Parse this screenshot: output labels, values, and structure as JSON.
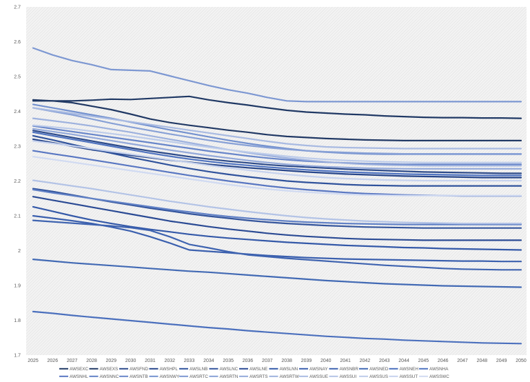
{
  "chart_data": {
    "type": "line",
    "title": "",
    "xlabel": "",
    "ylabel": "",
    "x": [
      "2025",
      "2026",
      "2027",
      "2028",
      "2029",
      "2030",
      "2031",
      "2032",
      "2033",
      "2034",
      "2035",
      "2036",
      "2037",
      "2038",
      "2039",
      "2040",
      "2041",
      "2042",
      "2043",
      "2044",
      "2045",
      "2046",
      "2047",
      "2048",
      "2049",
      "2050"
    ],
    "ylim": [
      1.7,
      2.7
    ],
    "yticks": [
      "1.7",
      "1.8",
      "1.9",
      "2",
      "2.1",
      "2.2",
      "2.3",
      "2.4",
      "2.5",
      "2.6",
      "2.7"
    ],
    "grid": false,
    "legend_position": "bottom",
    "background": "hatched light gray",
    "series": [
      {
        "name": "AWSEXC",
        "color": "#1f3864",
        "values": [
          2.43,
          2.43,
          2.43,
          2.432,
          2.435,
          2.434,
          2.437,
          2.44,
          2.443,
          2.433,
          2.425,
          2.418,
          2.41,
          2.403,
          2.398,
          2.395,
          2.392,
          2.39,
          2.387,
          2.385,
          2.383,
          2.382,
          2.382,
          2.381,
          2.381,
          2.38
        ]
      },
      {
        "name": "AWSEXS",
        "color": "#203864",
        "values": [
          2.433,
          2.43,
          2.425,
          2.415,
          2.405,
          2.392,
          2.378,
          2.368,
          2.36,
          2.353,
          2.346,
          2.34,
          2.333,
          2.328,
          2.325,
          2.322,
          2.32,
          2.318,
          2.317,
          2.316,
          2.316,
          2.316,
          2.316,
          2.316,
          2.316,
          2.316
        ]
      },
      {
        "name": "AWSFND",
        "color": "#2c4a8a",
        "values": [
          2.345,
          2.335,
          2.325,
          2.315,
          2.305,
          2.295,
          2.286,
          2.278,
          2.27,
          2.263,
          2.257,
          2.252,
          2.247,
          2.243,
          2.24,
          2.237,
          2.234,
          2.232,
          2.23,
          2.228,
          2.226,
          2.225,
          2.224,
          2.223,
          2.222,
          2.222
        ]
      },
      {
        "name": "AWSHPL",
        "color": "#26458a",
        "values": [
          2.32,
          2.31,
          2.3,
          2.29,
          2.282,
          2.274,
          2.267,
          2.26,
          2.254,
          2.248,
          2.243,
          2.238,
          2.234,
          2.23,
          2.226,
          2.223,
          2.22,
          2.218,
          2.216,
          2.214,
          2.213,
          2.212,
          2.211,
          2.21,
          2.21,
          2.21
        ]
      },
      {
        "name": "AWSLNB",
        "color": "#2f529c",
        "values": [
          2.33,
          2.318,
          2.305,
          2.292,
          2.28,
          2.268,
          2.257,
          2.246,
          2.236,
          2.227,
          2.219,
          2.212,
          2.206,
          2.2,
          2.196,
          2.193,
          2.19,
          2.188,
          2.187,
          2.186,
          2.186,
          2.186,
          2.186,
          2.186,
          2.186,
          2.186
        ]
      },
      {
        "name": "AWSLNC",
        "color": "#33549c",
        "values": [
          2.178,
          2.17,
          2.16,
          2.15,
          2.14,
          2.131,
          2.122,
          2.114,
          2.106,
          2.099,
          2.093,
          2.087,
          2.082,
          2.078,
          2.075,
          2.072,
          2.07,
          2.068,
          2.067,
          2.066,
          2.065,
          2.065,
          2.065,
          2.065,
          2.065,
          2.065
        ]
      },
      {
        "name": "AWSLNE",
        "color": "#2a4a94",
        "values": [
          2.155,
          2.145,
          2.135,
          2.125,
          2.115,
          2.105,
          2.095,
          2.085,
          2.077,
          2.069,
          2.062,
          2.056,
          2.05,
          2.045,
          2.041,
          2.038,
          2.035,
          2.033,
          2.032,
          2.031,
          2.03,
          2.03,
          2.03,
          2.03,
          2.03,
          2.03
        ]
      },
      {
        "name": "AWSLNN",
        "color": "#3358a8",
        "values": [
          2.126,
          2.113,
          2.1,
          2.088,
          2.078,
          2.069,
          2.061,
          2.054,
          2.047,
          2.041,
          2.036,
          2.032,
          2.028,
          2.024,
          2.021,
          2.018,
          2.015,
          2.013,
          2.011,
          2.009,
          2.008,
          2.006,
          2.005,
          2.004,
          2.003,
          2.002
        ]
      },
      {
        "name": "AWSNAY",
        "color": "#3a5fae",
        "values": [
          2.1,
          2.093,
          2.086,
          2.078,
          2.068,
          2.056,
          2.04,
          2.022,
          2.002,
          1.998,
          1.994,
          1.99,
          1.986,
          1.983,
          1.98,
          1.978,
          1.976,
          1.975,
          1.974,
          1.973,
          1.972,
          1.971,
          1.97,
          1.97,
          1.969,
          1.969
        ]
      },
      {
        "name": "AWSNBR",
        "color": "#3e63b0",
        "values": [
          2.087,
          2.083,
          2.079,
          2.075,
          2.071,
          2.066,
          2.058,
          2.04,
          2.018,
          2.008,
          1.997,
          1.988,
          1.983,
          1.978,
          1.974,
          1.97,
          1.966,
          1.962,
          1.958,
          1.955,
          1.952,
          1.949,
          1.947,
          1.946,
          1.945,
          1.945
        ]
      },
      {
        "name": "AWSNED",
        "color": "#4169b4",
        "values": [
          1.975,
          1.97,
          1.965,
          1.961,
          1.957,
          1.953,
          1.949,
          1.945,
          1.941,
          1.938,
          1.934,
          1.93,
          1.926,
          1.922,
          1.918,
          1.914,
          1.911,
          1.908,
          1.905,
          1.903,
          1.901,
          1.899,
          1.898,
          1.897,
          1.896,
          1.895
        ]
      },
      {
        "name": "AWSNEH",
        "color": "#4a6fbd",
        "values": [
          1.825,
          1.82,
          1.814,
          1.809,
          1.804,
          1.799,
          1.794,
          1.789,
          1.784,
          1.779,
          1.775,
          1.77,
          1.766,
          1.762,
          1.758,
          1.754,
          1.751,
          1.748,
          1.746,
          1.743,
          1.741,
          1.739,
          1.737,
          1.735,
          1.734,
          1.733
        ]
      },
      {
        "name": "AWSNHA",
        "color": "#4f73c0",
        "values": [
          2.34,
          2.33,
          2.32,
          2.31,
          2.3,
          2.29,
          2.28,
          2.271,
          2.263,
          2.256,
          2.25,
          2.245,
          2.24,
          2.236,
          2.232,
          2.229,
          2.226,
          2.224,
          2.222,
          2.22,
          2.219,
          2.218,
          2.217,
          2.216,
          2.216,
          2.216
        ]
      },
      {
        "name": "AWSNHL",
        "color": "#5876c2",
        "values": [
          2.287,
          2.278,
          2.27,
          2.261,
          2.252,
          2.243,
          2.234,
          2.225,
          2.216,
          2.208,
          2.2,
          2.193,
          2.186,
          2.18,
          2.175,
          2.171,
          2.167,
          2.164,
          2.162,
          2.16,
          2.159,
          2.158,
          2.157,
          2.157,
          2.157,
          2.157
        ]
      },
      {
        "name": "AWSNNC",
        "color": "#6181c6",
        "values": [
          2.175,
          2.166,
          2.158,
          2.15,
          2.142,
          2.134,
          2.126,
          2.118,
          2.111,
          2.104,
          2.098,
          2.093,
          2.089,
          2.085,
          2.082,
          2.08,
          2.078,
          2.077,
          2.076,
          2.075,
          2.075,
          2.075,
          2.075,
          2.075,
          2.075,
          2.075
        ]
      },
      {
        "name": "AWSNTB",
        "color": "#6886ca",
        "values": [
          2.358,
          2.35,
          2.342,
          2.334,
          2.326,
          2.318,
          2.31,
          2.302,
          2.294,
          2.286,
          2.279,
          2.272,
          2.266,
          2.261,
          2.257,
          2.254,
          2.252,
          2.25,
          2.249,
          2.248,
          2.248,
          2.248,
          2.248,
          2.248,
          2.248,
          2.248
        ]
      },
      {
        "name": "AWSNWY",
        "color": "#7391cf",
        "values": [
          2.42,
          2.41,
          2.4,
          2.39,
          2.38,
          2.369,
          2.358,
          2.347,
          2.337,
          2.327,
          2.317,
          2.308,
          2.3,
          2.293,
          2.287,
          2.283,
          2.28,
          2.278,
          2.277,
          2.277,
          2.277,
          2.277,
          2.277,
          2.277,
          2.277,
          2.277
        ]
      },
      {
        "name": "AWSRTC",
        "color": "#7c97d2",
        "values": [
          2.582,
          2.562,
          2.546,
          2.534,
          2.52,
          2.518,
          2.516,
          2.502,
          2.488,
          2.474,
          2.462,
          2.452,
          2.44,
          2.43,
          2.428,
          2.428,
          2.428,
          2.428,
          2.428,
          2.428,
          2.428,
          2.428,
          2.428,
          2.428,
          2.428,
          2.428
        ]
      },
      {
        "name": "AWSRTN",
        "color": "#87a0d6",
        "values": [
          2.41,
          2.4,
          2.39,
          2.378,
          2.366,
          2.355,
          2.345,
          2.335,
          2.326,
          2.317,
          2.309,
          2.302,
          2.296,
          2.291,
          2.287,
          2.284,
          2.282,
          2.28,
          2.279,
          2.278,
          2.278,
          2.278,
          2.278,
          2.278,
          2.278,
          2.278
        ]
      },
      {
        "name": "AWSRTS",
        "color": "#92a8da",
        "values": [
          2.35,
          2.342,
          2.334,
          2.325,
          2.316,
          2.307,
          2.298,
          2.289,
          2.281,
          2.273,
          2.266,
          2.259,
          2.253,
          2.248,
          2.244,
          2.241,
          2.239,
          2.237,
          2.236,
          2.235,
          2.235,
          2.235,
          2.235,
          2.235,
          2.235,
          2.235
        ]
      },
      {
        "name": "AWSRTW",
        "color": "#9db1de",
        "values": [
          2.38,
          2.373,
          2.366,
          2.358,
          2.349,
          2.34,
          2.33,
          2.32,
          2.31,
          2.3,
          2.29,
          2.281,
          2.273,
          2.266,
          2.26,
          2.255,
          2.251,
          2.248,
          2.246,
          2.245,
          2.244,
          2.244,
          2.244,
          2.244,
          2.244,
          2.244
        ]
      },
      {
        "name": "AWSSUE",
        "color": "#a8bae2",
        "values": [
          2.41,
          2.402,
          2.394,
          2.386,
          2.378,
          2.37,
          2.362,
          2.354,
          2.346,
          2.338,
          2.33,
          2.322,
          2.314,
          2.307,
          2.302,
          2.298,
          2.296,
          2.295,
          2.294,
          2.293,
          2.293,
          2.293,
          2.293,
          2.293,
          2.293,
          2.293
        ]
      },
      {
        "name": "AWSSUI",
        "color": "#b3c3e6",
        "values": [
          2.202,
          2.194,
          2.186,
          2.178,
          2.169,
          2.16,
          2.151,
          2.142,
          2.134,
          2.126,
          2.119,
          2.112,
          2.106,
          2.1,
          2.095,
          2.091,
          2.088,
          2.085,
          2.083,
          2.081,
          2.08,
          2.079,
          2.078,
          2.078,
          2.078,
          2.078
        ]
      },
      {
        "name": "AWSSUS",
        "color": "#bccbea",
        "values": [
          2.36,
          2.355,
          2.35,
          2.343,
          2.336,
          2.329,
          2.321,
          2.313,
          2.305,
          2.297,
          2.29,
          2.283,
          2.277,
          2.271,
          2.266,
          2.262,
          2.259,
          2.257,
          2.255,
          2.254,
          2.253,
          2.253,
          2.253,
          2.253,
          2.253,
          2.253
        ]
      },
      {
        "name": "AWSSUT",
        "color": "#c6d2ee",
        "values": [
          2.315,
          2.308,
          2.301,
          2.293,
          2.285,
          2.277,
          2.269,
          2.261,
          2.253,
          2.245,
          2.238,
          2.231,
          2.225,
          2.219,
          2.214,
          2.21,
          2.207,
          2.205,
          2.203,
          2.202,
          2.201,
          2.201,
          2.201,
          2.201,
          2.201,
          2.201
        ]
      },
      {
        "name": "AWSSWC",
        "color": "#d0daf2",
        "values": [
          2.27,
          2.262,
          2.254,
          2.246,
          2.238,
          2.23,
          2.222,
          2.214,
          2.206,
          2.198,
          2.19,
          2.183,
          2.177,
          2.172,
          2.168,
          2.165,
          2.162,
          2.16,
          2.159,
          2.158,
          2.158,
          2.158,
          2.158,
          2.158,
          2.158,
          2.158
        ]
      }
    ]
  }
}
